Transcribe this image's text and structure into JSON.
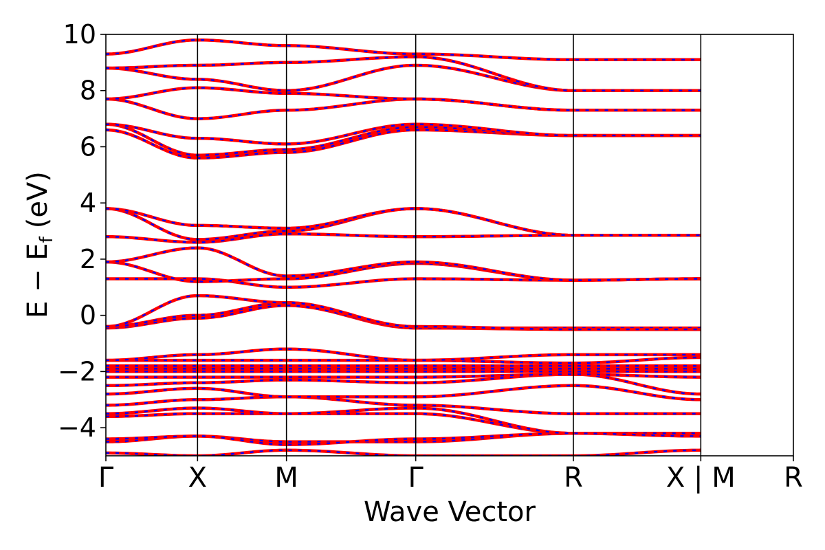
{
  "chart_data": {
    "type": "line",
    "title": "",
    "xlabel": "Wave Vector",
    "ylabel_main": "E − E",
    "ylabel_sub": "f",
    "ylabel_unit": "(eV)",
    "ylim": [
      -5,
      10
    ],
    "yticks": [
      -4,
      -2,
      0,
      2,
      4,
      6,
      8,
      10
    ],
    "ytick_labels": [
      "−4",
      "−2",
      "0",
      "2",
      "4",
      "6",
      "8",
      "10"
    ],
    "grid": false,
    "legend": "none",
    "colors": {
      "band": "#ff0000",
      "overlay": "#0000ff",
      "frame": "#000000"
    },
    "x_range": [
      0,
      7.5
    ],
    "segments": [
      {
        "from": "Γ",
        "to": "X",
        "x0": 0.0,
        "x1": 1.0
      },
      {
        "from": "X",
        "to": "M",
        "x0": 1.0,
        "x1": 1.97
      },
      {
        "from": "M",
        "to": "Γ",
        "x0": 1.97,
        "x1": 3.38
      },
      {
        "from": "Γ",
        "to": "R",
        "x0": 3.38,
        "x1": 5.1
      },
      {
        "from": "R",
        "to": "X",
        "x0": 5.1,
        "x1": 6.49
      },
      {
        "from": "M",
        "to": "R",
        "x0": 6.49,
        "x1": 7.5
      }
    ],
    "high_symmetry_points": [
      {
        "label": "Γ",
        "x": 0.0
      },
      {
        "label": "X",
        "x": 1.0
      },
      {
        "label": "M",
        "x": 1.97
      },
      {
        "label": "Γ",
        "x": 3.38
      },
      {
        "label": "R",
        "x": 5.1
      },
      {
        "label": "X | M",
        "x": 6.49
      },
      {
        "label": "R",
        "x": 7.5
      }
    ],
    "band_energies": [
      [
        -4.9,
        -5.0,
        -4.8,
        -5.0,
        -5.0,
        -4.8
      ],
      [
        -4.5,
        -4.3,
        -4.5,
        -4.5,
        -4.2,
        -4.2
      ],
      [
        -4.4,
        -4.3,
        -4.6,
        -4.4,
        -4.2,
        -4.2
      ],
      [
        -3.6,
        -3.5,
        -3.5,
        -3.5,
        -4.2,
        -4.2
      ],
      [
        -3.5,
        -3.3,
        -3.5,
        -3.3,
        -4.2,
        -4.3
      ],
      [
        -3.2,
        -3.0,
        -2.9,
        -3.2,
        -3.5,
        -3.5
      ],
      [
        -2.8,
        -2.6,
        -2.9,
        -2.9,
        -2.5,
        -3.0
      ],
      [
        -2.5,
        -2.4,
        -2.3,
        -2.4,
        -2.1,
        -2.8
      ],
      [
        -2.2,
        -2.2,
        -2.2,
        -2.2,
        -2.1,
        -2.2
      ],
      [
        -2.0,
        -2.0,
        -2.0,
        -2.0,
        -2.0,
        -2.0
      ],
      [
        -1.9,
        -1.9,
        -1.9,
        -1.9,
        -1.9,
        -1.9
      ],
      [
        -1.8,
        -1.8,
        -1.8,
        -1.8,
        -1.8,
        -1.8
      ],
      [
        -1.6,
        -1.6,
        -1.6,
        -1.6,
        -1.7,
        -1.5
      ],
      [
        -1.6,
        -1.4,
        -1.2,
        -1.6,
        -1.4,
        -1.4
      ],
      [
        -0.45,
        -0.1,
        0.35,
        -0.45,
        -0.5,
        -0.5
      ],
      [
        -0.4,
        0.0,
        0.45,
        -0.45,
        -0.45,
        -0.45
      ],
      [
        -0.4,
        0.7,
        0.45,
        -0.4,
        -0.5,
        -0.5
      ],
      [
        1.3,
        1.3,
        1.0,
        1.3,
        1.25,
        1.3
      ],
      [
        1.9,
        1.2,
        1.3,
        1.85,
        1.25,
        1.3
      ],
      [
        1.9,
        2.4,
        1.4,
        1.9,
        1.25,
        1.3
      ],
      [
        2.8,
        2.6,
        2.9,
        2.8,
        2.85,
        2.85
      ],
      [
        3.8,
        2.7,
        3.0,
        3.8,
        2.85,
        2.85
      ],
      [
        3.8,
        3.2,
        3.1,
        3.8,
        2.85,
        2.85
      ],
      [
        6.6,
        5.6,
        5.8,
        6.6,
        6.4,
        6.4
      ],
      [
        6.8,
        5.7,
        5.9,
        6.7,
        6.4,
        6.4
      ],
      [
        6.8,
        6.3,
        6.1,
        6.8,
        6.4,
        6.4
      ],
      [
        7.7,
        7.0,
        7.3,
        7.7,
        7.3,
        7.3
      ],
      [
        7.7,
        8.1,
        7.9,
        7.7,
        7.3,
        7.3
      ],
      [
        8.8,
        8.4,
        8.0,
        8.9,
        8.0,
        8.0
      ],
      [
        8.8,
        8.9,
        9.0,
        9.2,
        8.0,
        8.0
      ],
      [
        9.3,
        9.8,
        9.6,
        9.3,
        9.1,
        9.1
      ]
    ]
  }
}
